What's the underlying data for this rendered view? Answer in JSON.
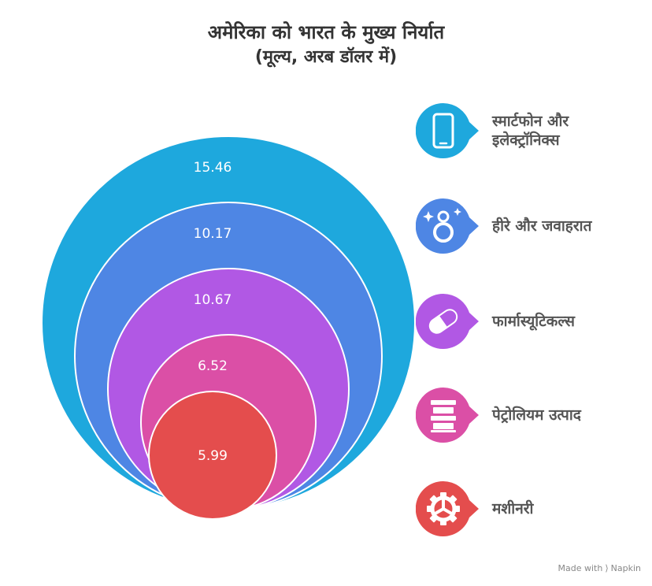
{
  "title_line1": "अमेरिका को भारत के मुख्य निर्यात",
  "title_line2": "(मूल्य, अरब डॉलर में)",
  "chart_data": {
    "type": "nested-circles",
    "categories": [
      "स्मार्टफोन और इलेक्ट्रॉनिक्स",
      "हीरे और जवाहरात",
      "फार्मास्यूटिकल्स",
      "पेट्रोलियम उत्पाद",
      "मशीनरी"
    ],
    "values": [
      15.46,
      10.17,
      10.67,
      6.52,
      5.99
    ]
  },
  "value_labels": [
    "15.46",
    "10.17",
    "10.67",
    "6.52",
    "5.99"
  ],
  "legend": [
    {
      "line1": "स्मार्टफोन और",
      "line2": "इलेक्ट्रॉनिक्स",
      "icon": "smartphone-icon",
      "color": "#1ea8dd"
    },
    {
      "line1": "हीरे और जवाहरात",
      "line2": "",
      "icon": "diamond-ring-icon",
      "color": "#4e86e4"
    },
    {
      "line1": "फार्मास्यूटिकल्स",
      "line2": "",
      "icon": "pill-icon",
      "color": "#b158e4"
    },
    {
      "line1": "पेट्रोलियम उत्पाद",
      "line2": "",
      "icon": "oil-barrels-icon",
      "color": "#db4fa6"
    },
    {
      "line1": "मशीनरी",
      "line2": "",
      "icon": "gear-icon",
      "color": "#e44d4d"
    }
  ],
  "footer": {
    "made_with": "Made with",
    "brand": "Napkin"
  }
}
